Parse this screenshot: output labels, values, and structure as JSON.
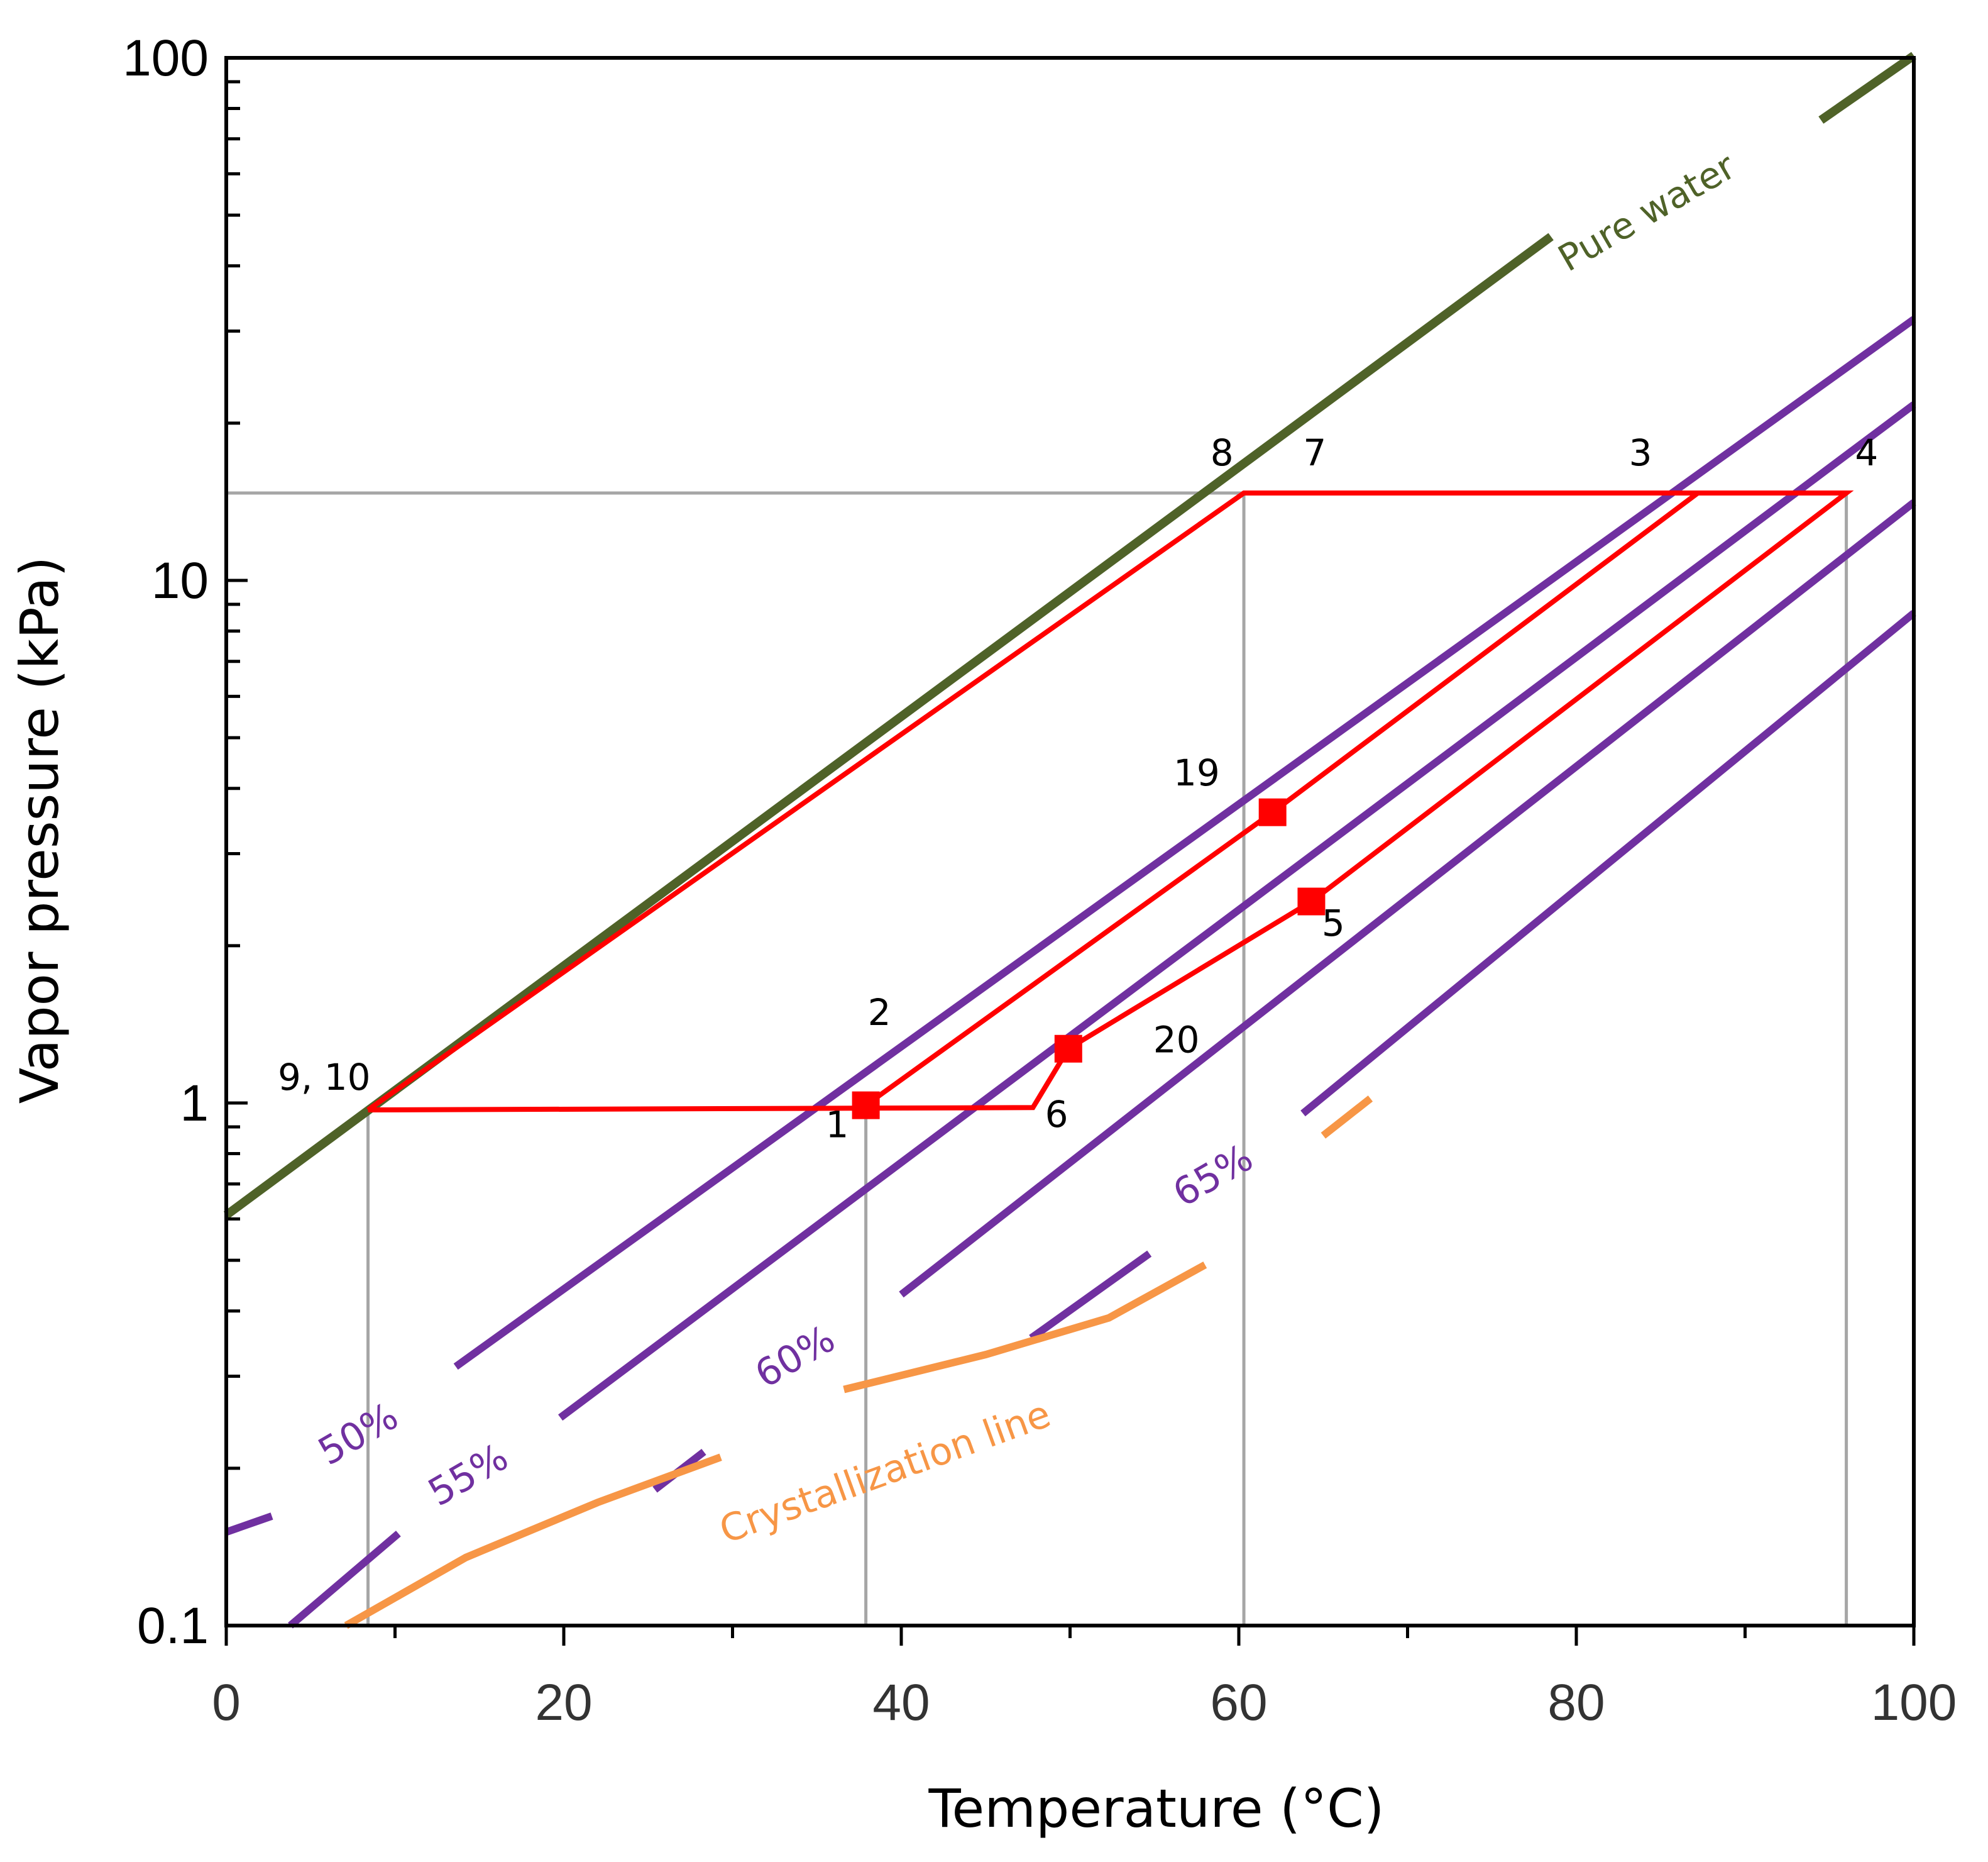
{
  "chart_data": {
    "type": "line",
    "title": "",
    "xlabel": "Temperature (°C)",
    "ylabel": "Vapor pressure (kPa)",
    "xlim": [
      0,
      100
    ],
    "ylim": [
      0.1,
      100
    ],
    "yscale": "log",
    "x_ticks": [
      {
        "value": 0,
        "label": "0"
      },
      {
        "value": 20,
        "label": "20"
      },
      {
        "value": 40,
        "label": "40"
      },
      {
        "value": 60,
        "label": "60"
      },
      {
        "value": 80,
        "label": "80"
      },
      {
        "value": 100,
        "label": "100"
      }
    ],
    "y_ticks": [
      {
        "value": 0.1,
        "label": "0.1"
      },
      {
        "value": 1,
        "label": "1"
      },
      {
        "value": 10,
        "label": "10"
      },
      {
        "value": 100,
        "label": "100"
      }
    ],
    "colors": {
      "water": "#4f6228",
      "solution": "#7030a0",
      "cycle": "#ff0000",
      "crystallization": "#f79646",
      "guide": "#a6a6a6",
      "axis": "#000000"
    },
    "series": [
      {
        "name": "Pure water",
        "kind": "water",
        "label": "Pure water",
        "segments": [
          [
            [
              0,
              0.61
            ],
            [
              78.5,
              45.5
            ]
          ],
          [
            [
              94.5,
              76
            ],
            [
              100,
              101
            ]
          ]
        ]
      },
      {
        "name": "50%",
        "kind": "solution",
        "label": "50%",
        "segments": [
          [
            [
              0,
              0.151
            ],
            [
              2.7,
              0.162
            ]
          ],
          [
            [
              13.6,
              0.313
            ],
            [
              100,
              31.6
            ]
          ]
        ]
      },
      {
        "name": "55%",
        "kind": "solution",
        "label": "55%",
        "segments": [
          [
            [
              3.8,
              0.1
            ],
            [
              10.2,
              0.15
            ]
          ],
          [
            [
              19.8,
              0.25
            ],
            [
              100,
              21.7
            ]
          ]
        ]
      },
      {
        "name": "60%",
        "kind": "solution",
        "label": "60%",
        "segments": [
          [
            [
              25.4,
              0.182
            ],
            [
              28.3,
              0.215
            ]
          ],
          [
            [
              40,
              0.43
            ],
            [
              100,
              14.1
            ]
          ]
        ]
      },
      {
        "name": "65%",
        "kind": "solution",
        "label": "65%",
        "segments": [
          [
            [
              47.7,
              0.355
            ],
            [
              54.7,
              0.515
            ]
          ],
          [
            [
              63.8,
              0.955
            ],
            [
              100,
              8.66
            ]
          ]
        ]
      },
      {
        "name": "Crystallization line",
        "kind": "crystallization",
        "label": "Crystallization line",
        "segments": [
          [
            [
              7.1,
              0.1
            ],
            [
              14.2,
              0.135
            ],
            [
              22,
              0.172
            ],
            [
              29.3,
              0.21
            ]
          ],
          [
            [
              36.6,
              0.283
            ],
            [
              45,
              0.33
            ],
            [
              52.3,
              0.388
            ],
            [
              58,
              0.49
            ]
          ],
          [
            [
              65,
              0.866
            ],
            [
              67.8,
              1.02
            ]
          ]
        ]
      },
      {
        "name": "Absorption cycle",
        "kind": "cycle",
        "label": "",
        "segments": [
          [
            [
              8.4,
              0.97
            ],
            [
              60.3,
              14.7
            ],
            [
              96,
              14.7
            ],
            [
              64.3,
              2.43
            ],
            [
              49.9,
              1.27
            ],
            [
              47.8,
              0.98
            ],
            [
              8.4,
              0.97
            ]
          ],
          [
            [
              37.9,
              0.99
            ],
            [
              62,
              3.6
            ],
            [
              87.2,
              14.7
            ]
          ]
        ]
      }
    ],
    "markers": [
      {
        "name": "1",
        "x": 37.9,
        "y": 0.99
      },
      {
        "name": "20",
        "x": 49.9,
        "y": 1.27
      },
      {
        "name": "19",
        "x": 62,
        "y": 3.6
      },
      {
        "name": "5",
        "x": 64.3,
        "y": 2.43
      }
    ],
    "guides": [
      {
        "orientation": "h",
        "y": 14.7,
        "x0": 0,
        "x1": 60.3
      },
      {
        "orientation": "v",
        "x": 8.4,
        "y0": 0.1,
        "y1": 0.97
      },
      {
        "orientation": "v",
        "x": 37.9,
        "y0": 0.1,
        "y1": 0.99
      },
      {
        "orientation": "v",
        "x": 60.3,
        "y0": 0.1,
        "y1": 14.7
      },
      {
        "orientation": "v",
        "x": 96,
        "y0": 0.1,
        "y1": 14.7
      }
    ],
    "point_labels": [
      {
        "text": "1",
        "x": 36.2,
        "y": 0.86
      },
      {
        "text": "2",
        "x": 38.7,
        "y": 1.41
      },
      {
        "text": "3",
        "x": 83.8,
        "y": 16.6
      },
      {
        "text": "4",
        "x": 97.2,
        "y": 16.6
      },
      {
        "text": "5",
        "x": 65.6,
        "y": 2.09
      },
      {
        "text": "6",
        "x": 49.2,
        "y": 0.9
      },
      {
        "text": "7",
        "x": 64.5,
        "y": 16.6
      },
      {
        "text": "8",
        "x": 59,
        "y": 16.6
      },
      {
        "text": "19",
        "x": 57.5,
        "y": 4.05
      },
      {
        "text": "20",
        "x": 56.3,
        "y": 1.25
      },
      {
        "text": "9, 10",
        "x": 5.8,
        "y": 1.06
      }
    ]
  }
}
